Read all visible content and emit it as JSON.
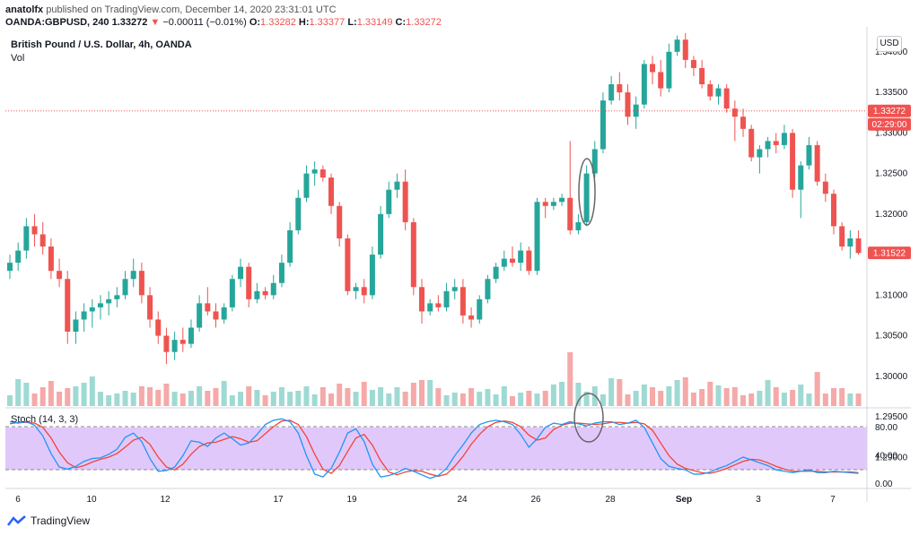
{
  "header": {
    "line1_user": "anatolfx",
    "line1_rest": " published on TradingView.com, December 14, 2020 23:31:01 UTC",
    "symbol": "OANDA:GBPUSD, 240",
    "last": "1.33272",
    "change": "−0.00011 (−0.01%)",
    "open_label": "O:",
    "open": "1.33282",
    "high_label": "H:",
    "high": "1.33377",
    "low_label": "L:",
    "low": "1.33149",
    "close_label": "C:",
    "close": "1.33272"
  },
  "chart_title": "British Pound / U.S. Dollar, 4h, OANDA",
  "vol_label": "Vol",
  "stoch_label": "Stoch (14, 3, 3)",
  "currency_button": "USD",
  "footer_brand": "TradingView",
  "colors": {
    "up": "#26a69a",
    "down": "#ef5350",
    "vol_up": "#9fd9d3",
    "vol_down": "#f5a9a8",
    "stoch_band": "#e1c8fb",
    "k_line": "#2196f3",
    "d_line": "#f44336"
  },
  "chart_data": [
    {
      "type": "candlestick",
      "title": "British Pound / U.S. Dollar, 4h, OANDA",
      "ylim": [
        1.297,
        1.3423
      ],
      "price_ticks": [
        1.34,
        1.335,
        1.33,
        1.325,
        1.32,
        1.315,
        1.31,
        1.305,
        1.3,
        1.295,
        1.29
      ],
      "price_tick_labels": [
        "1.34000",
        "1.33500",
        "1.33000",
        "1.32500",
        "1.32000",
        "1.31500",
        "1.31000",
        "1.30500",
        "1.30000",
        "1.29500",
        "1.29000"
      ],
      "x_labels": [
        "6",
        "10",
        "12",
        "17",
        "19",
        "24",
        "26",
        "28",
        "Sep",
        "3",
        "7"
      ],
      "badges": [
        {
          "text": "1.33272",
          "value": 1.33272,
          "color": "#ef5350"
        },
        {
          "text": "02:29:00",
          "value": 1.3313,
          "color": "#ef5350"
        },
        {
          "text": "1.31522",
          "value": 1.31522,
          "color": "#ef5350"
        }
      ],
      "ohlc": [
        [
          1.313,
          1.315,
          1.312,
          1.314
        ],
        [
          1.314,
          1.3165,
          1.313,
          1.3155
        ],
        [
          1.3155,
          1.3195,
          1.3145,
          1.3185
        ],
        [
          1.3185,
          1.32,
          1.316,
          1.3175
        ],
        [
          1.3175,
          1.319,
          1.315,
          1.316
        ],
        [
          1.316,
          1.317,
          1.312,
          1.313
        ],
        [
          1.313,
          1.3145,
          1.311,
          1.312
        ],
        [
          1.312,
          1.313,
          1.304,
          1.3055
        ],
        [
          1.3055,
          1.308,
          1.304,
          1.307
        ],
        [
          1.307,
          1.309,
          1.3055,
          1.308
        ],
        [
          1.308,
          1.3095,
          1.306,
          1.3085
        ],
        [
          1.3085,
          1.31,
          1.307,
          1.309
        ],
        [
          1.309,
          1.3105,
          1.3075,
          1.3095
        ],
        [
          1.3095,
          1.311,
          1.3085,
          1.31
        ],
        [
          1.31,
          1.313,
          1.3095,
          1.312
        ],
        [
          1.312,
          1.3145,
          1.311,
          1.313
        ],
        [
          1.313,
          1.314,
          1.309,
          1.31
        ],
        [
          1.31,
          1.311,
          1.306,
          1.307
        ],
        [
          1.307,
          1.308,
          1.304,
          1.305
        ],
        [
          1.305,
          1.306,
          1.3015,
          1.303
        ],
        [
          1.303,
          1.3055,
          1.302,
          1.3045
        ],
        [
          1.3045,
          1.306,
          1.303,
          1.304
        ],
        [
          1.304,
          1.307,
          1.3035,
          1.306
        ],
        [
          1.306,
          1.31,
          1.3055,
          1.309
        ],
        [
          1.309,
          1.311,
          1.3075,
          1.308
        ],
        [
          1.308,
          1.309,
          1.306,
          1.307
        ],
        [
          1.307,
          1.309,
          1.3065,
          1.3085
        ],
        [
          1.3085,
          1.3125,
          1.308,
          1.312
        ],
        [
          1.312,
          1.3145,
          1.311,
          1.3135
        ],
        [
          1.3135,
          1.314,
          1.3085,
          1.3095
        ],
        [
          1.3095,
          1.3115,
          1.309,
          1.3105
        ],
        [
          1.3105,
          1.311,
          1.3095,
          1.31
        ],
        [
          1.31,
          1.3125,
          1.3095,
          1.3115
        ],
        [
          1.3115,
          1.315,
          1.311,
          1.314
        ],
        [
          1.314,
          1.319,
          1.3135,
          1.318
        ],
        [
          1.318,
          1.323,
          1.3175,
          1.322
        ],
        [
          1.322,
          1.326,
          1.3215,
          1.325
        ],
        [
          1.325,
          1.3265,
          1.3235,
          1.3255
        ],
        [
          1.3255,
          1.326,
          1.324,
          1.3245
        ],
        [
          1.3245,
          1.325,
          1.32,
          1.321
        ],
        [
          1.321,
          1.3215,
          1.316,
          1.317
        ],
        [
          1.317,
          1.3175,
          1.31,
          1.3105
        ],
        [
          1.3105,
          1.3115,
          1.3095,
          1.311
        ],
        [
          1.311,
          1.312,
          1.309,
          1.31
        ],
        [
          1.31,
          1.316,
          1.3095,
          1.315
        ],
        [
          1.315,
          1.321,
          1.3145,
          1.32
        ],
        [
          1.32,
          1.324,
          1.3195,
          1.323
        ],
        [
          1.323,
          1.325,
          1.322,
          1.324
        ],
        [
          1.324,
          1.3255,
          1.318,
          1.319
        ],
        [
          1.319,
          1.3195,
          1.31,
          1.311
        ],
        [
          1.311,
          1.312,
          1.3065,
          1.308
        ],
        [
          1.308,
          1.3095,
          1.3075,
          1.309
        ],
        [
          1.309,
          1.31,
          1.308,
          1.3085
        ],
        [
          1.3085,
          1.3115,
          1.308,
          1.3105
        ],
        [
          1.3105,
          1.312,
          1.3095,
          1.311
        ],
        [
          1.311,
          1.312,
          1.3065,
          1.3075
        ],
        [
          1.3075,
          1.3085,
          1.306,
          1.307
        ],
        [
          1.307,
          1.31,
          1.3065,
          1.3095
        ],
        [
          1.3095,
          1.3125,
          1.309,
          1.312
        ],
        [
          1.312,
          1.314,
          1.3115,
          1.3135
        ],
        [
          1.3135,
          1.3155,
          1.313,
          1.3145
        ],
        [
          1.3145,
          1.316,
          1.3135,
          1.314
        ],
        [
          1.314,
          1.3165,
          1.313,
          1.3155
        ],
        [
          1.3155,
          1.316,
          1.3125,
          1.313
        ],
        [
          1.313,
          1.322,
          1.3125,
          1.3215
        ],
        [
          1.3215,
          1.322,
          1.3195,
          1.321
        ],
        [
          1.321,
          1.322,
          1.3205,
          1.3215
        ],
        [
          1.3215,
          1.3225,
          1.321,
          1.322
        ],
        [
          1.322,
          1.329,
          1.3175,
          1.318
        ],
        [
          1.318,
          1.32,
          1.3175,
          1.319
        ],
        [
          1.319,
          1.326,
          1.3185,
          1.325
        ],
        [
          1.325,
          1.329,
          1.3245,
          1.328
        ],
        [
          1.328,
          1.335,
          1.3275,
          1.334
        ],
        [
          1.334,
          1.337,
          1.3335,
          1.336
        ],
        [
          1.336,
          1.3375,
          1.334,
          1.335
        ],
        [
          1.335,
          1.336,
          1.331,
          1.332
        ],
        [
          1.332,
          1.3345,
          1.3305,
          1.3335
        ],
        [
          1.3335,
          1.339,
          1.333,
          1.3385
        ],
        [
          1.3385,
          1.3395,
          1.336,
          1.3375
        ],
        [
          1.3375,
          1.339,
          1.3345,
          1.3355
        ],
        [
          1.3355,
          1.341,
          1.335,
          1.34
        ],
        [
          1.34,
          1.342,
          1.3395,
          1.3415
        ],
        [
          1.3415,
          1.3423,
          1.338,
          1.339
        ],
        [
          1.339,
          1.3395,
          1.337,
          1.338
        ],
        [
          1.338,
          1.339,
          1.3355,
          1.336
        ],
        [
          1.336,
          1.3365,
          1.334,
          1.3345
        ],
        [
          1.3345,
          1.336,
          1.3335,
          1.3355
        ],
        [
          1.3355,
          1.336,
          1.3325,
          1.333
        ],
        [
          1.333,
          1.334,
          1.329,
          1.332
        ],
        [
          1.332,
          1.333,
          1.3295,
          1.3305
        ],
        [
          1.3305,
          1.331,
          1.3265,
          1.327
        ],
        [
          1.327,
          1.3285,
          1.325,
          1.328
        ],
        [
          1.328,
          1.3295,
          1.327,
          1.329
        ],
        [
          1.329,
          1.33,
          1.3275,
          1.3285
        ],
        [
          1.3285,
          1.331,
          1.328,
          1.33
        ],
        [
          1.33,
          1.3305,
          1.322,
          1.323
        ],
        [
          1.323,
          1.3265,
          1.3195,
          1.326
        ],
        [
          1.326,
          1.3295,
          1.3255,
          1.3285
        ],
        [
          1.3285,
          1.329,
          1.3235,
          1.324
        ],
        [
          1.324,
          1.325,
          1.3215,
          1.3225
        ],
        [
          1.3225,
          1.323,
          1.3175,
          1.3185
        ],
        [
          1.3185,
          1.319,
          1.3155,
          1.316
        ],
        [
          1.316,
          1.318,
          1.3145,
          1.317
        ],
        [
          1.317,
          1.318,
          1.315,
          1.3152
        ]
      ],
      "volume": [
        12,
        30,
        26,
        14,
        21,
        28,
        16,
        20,
        22,
        26,
        33,
        16,
        12,
        14,
        17,
        15,
        22,
        21,
        18,
        25,
        16,
        14,
        17,
        22,
        17,
        20,
        28,
        12,
        16,
        22,
        18,
        12,
        16,
        21,
        16,
        17,
        22,
        13,
        21,
        14,
        25,
        20,
        16,
        27,
        18,
        21,
        14,
        21,
        16,
        26,
        29,
        29,
        20,
        12,
        15,
        14,
        20,
        16,
        19,
        13,
        22,
        11,
        15,
        17,
        14,
        17,
        24,
        27,
        60,
        26,
        16,
        22,
        13,
        31,
        30,
        13,
        17,
        24,
        21,
        17,
        22,
        29,
        32,
        15,
        19,
        27,
        23,
        20,
        21,
        12,
        14,
        17,
        29,
        21,
        15,
        18,
        24,
        14,
        38,
        14,
        20,
        20,
        14,
        14
      ],
      "stoch_k": [
        88,
        86,
        88,
        83,
        68,
        43,
        24,
        21,
        25,
        32,
        36,
        37,
        42,
        49,
        66,
        72,
        60,
        36,
        18,
        19,
        24,
        40,
        61,
        59,
        53,
        65,
        72,
        64,
        55,
        58,
        70,
        84,
        90,
        92,
        88,
        72,
        40,
        14,
        10,
        22,
        45,
        72,
        78,
        60,
        28,
        10,
        12,
        16,
        22,
        18,
        13,
        8,
        12,
        22,
        40,
        55,
        72,
        84,
        88,
        90,
        88,
        84,
        70,
        52,
        64,
        80,
        86,
        84,
        88,
        85,
        82,
        86,
        88,
        88,
        84,
        86,
        90,
        80,
        58,
        36,
        25,
        22,
        20,
        14,
        14,
        17,
        22,
        26,
        32,
        38,
        34,
        30,
        26,
        20,
        18,
        16,
        18,
        20,
        16,
        16,
        18,
        17,
        16,
        15
      ],
      "stoch_d": [
        85,
        87,
        87,
        86,
        80,
        65,
        45,
        30,
        23,
        26,
        31,
        35,
        38,
        43,
        52,
        62,
        66,
        56,
        38,
        24,
        20,
        28,
        42,
        53,
        58,
        59,
        63,
        67,
        64,
        59,
        61,
        71,
        81,
        89,
        90,
        84,
        67,
        42,
        21,
        15,
        26,
        46,
        65,
        70,
        55,
        33,
        17,
        13,
        17,
        19,
        18,
        14,
        11,
        14,
        25,
        39,
        56,
        70,
        81,
        87,
        89,
        87,
        81,
        69,
        62,
        65,
        77,
        83,
        86,
        86,
        85,
        84,
        85,
        87,
        87,
        86,
        87,
        85,
        76,
        58,
        40,
        28,
        22,
        19,
        16,
        15,
        18,
        22,
        27,
        32,
        35,
        34,
        30,
        25,
        21,
        18,
        18,
        18,
        18,
        17,
        17,
        17,
        17,
        16
      ],
      "stoch_ticks": [
        80,
        40,
        0
      ],
      "stoch_tick_labels": [
        "80.00",
        "40.00",
        "0.00"
      ],
      "stoch_bands": [
        80,
        20
      ]
    }
  ]
}
